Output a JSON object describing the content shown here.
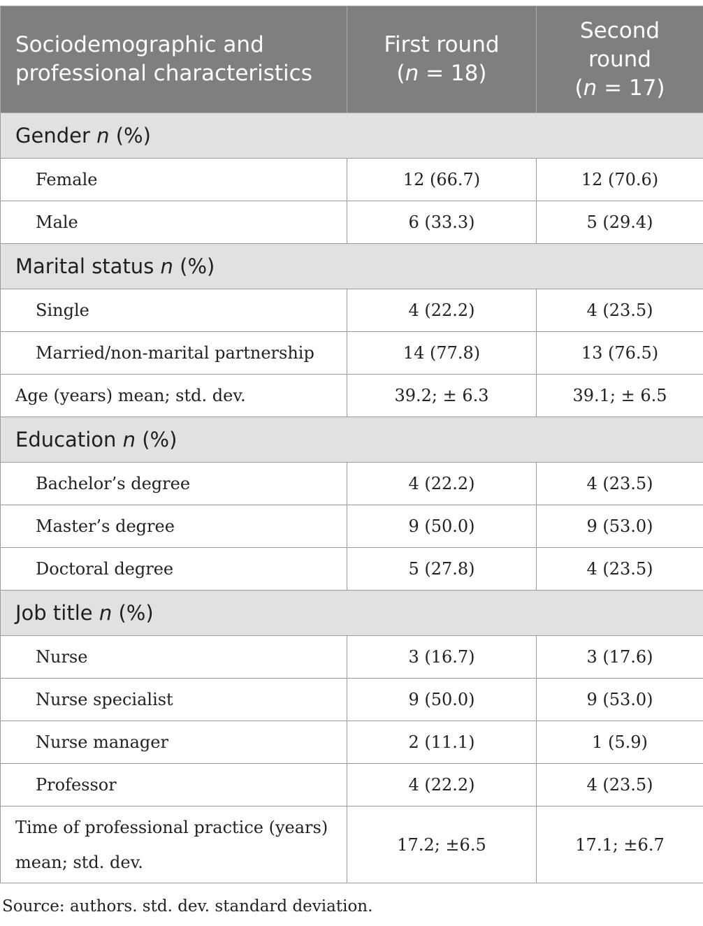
{
  "header": {
    "col1": "Sociodemographic and professional characteristics",
    "col2": {
      "line1": "First round",
      "n_label": "n",
      "n_value": " = 18)"
    },
    "col3": {
      "line1": "Second",
      "line2": "round",
      "n_label": "n",
      "n_value": " = 17)"
    }
  },
  "sections": {
    "gender": "Gender",
    "marital": "Marital status",
    "education": "Education",
    "job": "Job title",
    "n_label": "n",
    "pct": " (%)"
  },
  "rows": {
    "female": {
      "label": "Female",
      "first": "12 (66.7)",
      "second": "12 (70.6)"
    },
    "male": {
      "label": "Male",
      "first": "6 (33.3)",
      "second": "5 (29.4)"
    },
    "single": {
      "label": "Single",
      "first": "4 (22.2)",
      "second": "4 (23.5)"
    },
    "married": {
      "label": "Married/non-marital partnership",
      "first": "14 (77.8)",
      "second": "13 (76.5)"
    },
    "age": {
      "label": "Age (years) mean; std. dev.",
      "first": "39.2; ± 6.3",
      "second": "39.1; ± 6.5"
    },
    "bachelor": {
      "label": "Bachelor’s degree",
      "first": "4 (22.2)",
      "second": "4 (23.5)"
    },
    "master": {
      "label": "Master’s degree",
      "first": "9 (50.0)",
      "second": "9 (53.0)"
    },
    "doctoral": {
      "label": "Doctoral degree",
      "first": "5 (27.8)",
      "second": "4 (23.5)"
    },
    "nurse": {
      "label": "Nurse",
      "first": "3 (16.7)",
      "second": "3 (17.6)"
    },
    "specialist": {
      "label": "Nurse specialist",
      "first": "9 (50.0)",
      "second": "9 (53.0)"
    },
    "manager": {
      "label": "Nurse manager",
      "first": "2 (11.1)",
      "second": "1 (5.9)"
    },
    "professor": {
      "label": "Professor",
      "first": "4 (22.2)",
      "second": "4 (23.5)"
    },
    "practice": {
      "label_line1": "Time of professional practice (years)",
      "label_line2": "mean; std. dev.",
      "first": "17.2; ±6.5",
      "second": "17.1; ±6.7"
    }
  },
  "footnote": "Source: authors. std. dev. standard deviation."
}
